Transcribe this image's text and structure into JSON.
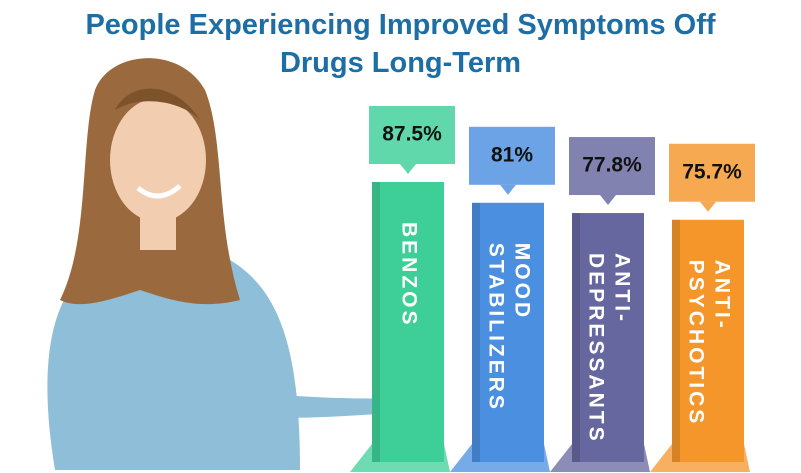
{
  "chart_data": {
    "type": "bar",
    "title": "People Experiencing Improved Symptoms Off Drugs Long-Term",
    "categories": [
      [
        "BENZOS"
      ],
      [
        "MOOD",
        "STABILIZERS"
      ],
      [
        "ANTI-",
        "DEPRESSANTS"
      ],
      [
        "ANTI-",
        "PSYCHOTICS"
      ]
    ],
    "values": [
      87.5,
      81,
      77.8,
      75.7
    ],
    "value_labels": [
      "87.5%",
      "81%",
      "77.8%",
      "75.7%"
    ],
    "colors": [
      "#3ecf98",
      "#4a8fe0",
      "#66679f",
      "#f4962a"
    ]
  }
}
